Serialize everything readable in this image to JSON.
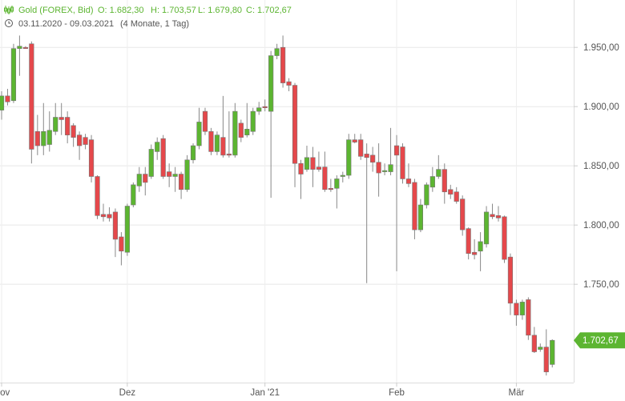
{
  "header": {
    "name": "Gold (FOREX, Bid)",
    "open": "O: 1.682,30",
    "high": "H: 1.703,57",
    "low": "L: 1.679,80",
    "close": "C: 1.702,67",
    "range": "03.11.2020 - 09.03.2021",
    "period": "(4 Monate, 1 Tag)"
  },
  "chart_data": {
    "type": "candlestick",
    "categories": [
      "Nov",
      null,
      null,
      null,
      null,
      null,
      null,
      null,
      null,
      null,
      null,
      null,
      null,
      null,
      null,
      null,
      null,
      null,
      null,
      null,
      null,
      "Dez",
      null,
      null,
      null,
      null,
      null,
      null,
      null,
      null,
      null,
      null,
      null,
      null,
      null,
      null,
      null,
      null,
      null,
      null,
      null,
      null,
      null,
      null,
      "Jan '21",
      null,
      null,
      null,
      null,
      null,
      null,
      null,
      null,
      null,
      null,
      null,
      null,
      null,
      null,
      null,
      null,
      null,
      null,
      null,
      null,
      null,
      "Feb",
      null,
      null,
      null,
      null,
      null,
      null,
      null,
      null,
      null,
      null,
      null,
      null,
      null,
      null,
      null,
      null,
      null,
      null,
      null,
      "Mär",
      null,
      null,
      null,
      null,
      null,
      null
    ],
    "open": [
      1897,
      1909,
      1905,
      1949,
      1950,
      1953,
      1879,
      1867,
      1868,
      1879,
      1891,
      1891,
      1884,
      1876,
      1874,
      1872,
      1841,
      1809,
      1809,
      1811,
      1790,
      1777,
      1817,
      1833,
      1843,
      1841,
      1862,
      1873,
      1845,
      1841,
      1843,
      1830,
      1855,
      1867,
      1896,
      1879,
      1862,
      1874,
      1860,
      1859,
      1886,
      1876,
      1879,
      1896,
      1900,
      1896,
      1943,
      1950,
      1921,
      1918,
      1852,
      1847,
      1857,
      1849,
      1849,
      1831,
      1831,
      1841,
      1842,
      1872,
      1872,
      1860,
      1859,
      1853,
      1845,
      1845,
      1867,
      1866,
      1839,
      1836,
      1796,
      1817,
      1832,
      1841,
      1847,
      1830,
      1828,
      1822,
      1797,
      1777,
      1778,
      1784,
      1809,
      1808,
      1807,
      1773,
      1734,
      1724,
      1737,
      1707,
      1695,
      1697,
      1682.3
    ],
    "high": [
      1913,
      1915,
      1953,
      1960,
      1951,
      1955,
      1893,
      1903,
      1896,
      1903,
      1903,
      1896,
      1886,
      1879,
      1877,
      1876,
      1842,
      1818,
      1815,
      1814,
      1794,
      1818,
      1836,
      1849,
      1849,
      1868,
      1874,
      1876,
      1852,
      1849,
      1845,
      1859,
      1869,
      1899,
      1899,
      1882,
      1879,
      1909,
      1896,
      1903,
      1889,
      1903,
      1899,
      1904,
      1906,
      1947,
      1953,
      1960,
      1924,
      1920,
      1855,
      1867,
      1866,
      1862,
      1862,
      1839,
      1842,
      1845,
      1877,
      1877,
      1877,
      1869,
      1866,
      1869,
      1852,
      1882,
      1876,
      1869,
      1852,
      1839,
      1822,
      1836,
      1849,
      1859,
      1852,
      1834,
      1832,
      1825,
      1798,
      1788,
      1794,
      1816,
      1818,
      1816,
      1808,
      1776,
      1737,
      1737,
      1739,
      1714,
      1700,
      1712,
      1703.57
    ],
    "low": [
      1889,
      1901,
      1903,
      1926,
      1949,
      1852,
      1859,
      1859,
      1862,
      1876,
      1876,
      1869,
      1866,
      1855,
      1864,
      1836,
      1805,
      1803,
      1803,
      1773,
      1766,
      1774,
      1815,
      1828,
      1825,
      1839,
      1855,
      1839,
      1832,
      1828,
      1822,
      1828,
      1852,
      1864,
      1876,
      1859,
      1859,
      1857,
      1857,
      1857,
      1870,
      1874,
      1876,
      1893,
      1896,
      1823,
      1940,
      1916,
      1913,
      1832,
      1822,
      1845,
      1832,
      1845,
      1828,
      1828,
      1814,
      1836,
      1839,
      1869,
      1855,
      1751,
      1845,
      1824,
      1842,
      1842,
      1761,
      1835,
      1832,
      1788,
      1794,
      1814,
      1828,
      1839,
      1818,
      1822,
      1818,
      1791,
      1771,
      1771,
      1761,
      1781,
      1805,
      1803,
      1768,
      1724,
      1715,
      1720,
      1703,
      1692,
      1693,
      1673,
      1679.8
    ],
    "close": [
      1909,
      1904,
      1949,
      1951,
      1949,
      1864,
      1867,
      1879,
      1880,
      1891,
      1889,
      1876,
      1874,
      1867,
      1868,
      1841,
      1808,
      1807,
      1806,
      1788,
      1778,
      1816,
      1834,
      1843,
      1836,
      1864,
      1870,
      1841,
      1841,
      1843,
      1830,
      1855,
      1867,
      1887,
      1879,
      1862,
      1876,
      1859,
      1859,
      1896,
      1874,
      1881,
      1896,
      1899,
      1899,
      1943,
      1949,
      1920,
      1918,
      1852,
      1843,
      1857,
      1847,
      1847,
      1830,
      1830,
      1839,
      1842,
      1872,
      1870,
      1858,
      1857,
      1853,
      1844,
      1846,
      1851,
      1859,
      1839,
      1835,
      1796,
      1817,
      1834,
      1841,
      1847,
      1828,
      1826,
      1820,
      1796,
      1776,
      1775,
      1786,
      1811,
      1807,
      1806,
      1771,
      1734,
      1724,
      1735,
      1707,
      1693,
      1697,
      1676,
      1702.67
    ],
    "up_color": "#5cb531",
    "down_color": "#e5484b",
    "last_price": {
      "value": 1702.67,
      "label": "1.702,67"
    },
    "ylim": [
      1667,
      1990
    ],
    "yticks": [
      {
        "value": 1750,
        "label": "1.750,00"
      },
      {
        "value": 1800,
        "label": "1.800,00"
      },
      {
        "value": 1850,
        "label": "1.850,00"
      },
      {
        "value": 1900,
        "label": "1.900,00"
      },
      {
        "value": 1950,
        "label": "1.950,00"
      }
    ],
    "grid": true
  }
}
